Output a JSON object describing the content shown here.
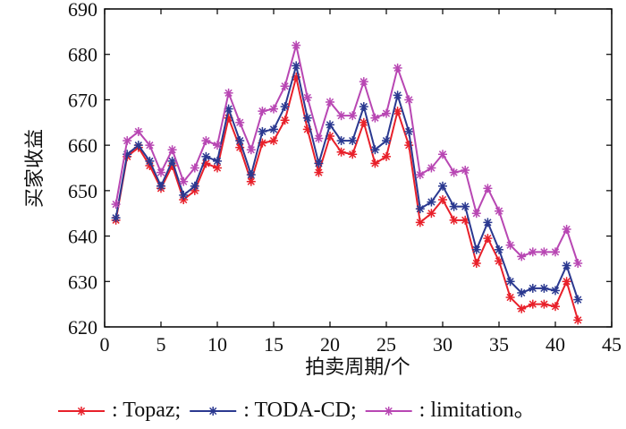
{
  "chart_data": {
    "type": "line",
    "title": "",
    "xlabel": "拍卖周期/个",
    "ylabel": "买家收益",
    "xlim": [
      0,
      45
    ],
    "ylim": [
      620,
      690
    ],
    "xticks": [
      0,
      5,
      10,
      15,
      20,
      25,
      30,
      35,
      40,
      45
    ],
    "yticks": [
      620,
      630,
      640,
      650,
      660,
      670,
      680,
      690
    ],
    "grid": false,
    "legend_position": "bottom",
    "legend_prefix": ": ",
    "legend_suffixes": [
      ";",
      ";",
      "。"
    ],
    "x": [
      1,
      2,
      3,
      4,
      5,
      6,
      7,
      8,
      9,
      10,
      11,
      12,
      13,
      14,
      15,
      16,
      17,
      18,
      19,
      20,
      21,
      22,
      23,
      24,
      25,
      26,
      27,
      28,
      29,
      30,
      31,
      32,
      33,
      34,
      35,
      36,
      37,
      38,
      39,
      40,
      41,
      42
    ],
    "series": [
      {
        "name": "Topaz",
        "color": "#e8202a",
        "marker": "asterisk",
        "values": [
          643.5,
          657.5,
          659.5,
          655.5,
          650.5,
          655.5,
          648,
          650,
          656,
          655,
          666,
          659.5,
          652,
          660.5,
          661,
          665.5,
          675,
          663.5,
          654,
          662,
          658.5,
          658,
          665,
          656,
          657.5,
          667.5,
          660,
          643,
          645,
          648,
          643.5,
          643.5,
          634,
          639.5,
          634.5,
          626.5,
          624,
          625,
          625,
          624.5,
          630,
          621.5
        ]
      },
      {
        "name": "TODA-CD",
        "color": "#2b3990",
        "marker": "asterisk",
        "values": [
          644,
          658,
          660,
          656.5,
          651,
          656.5,
          649,
          651,
          657.5,
          656.5,
          668,
          661,
          653.5,
          663,
          663.5,
          668.5,
          677.5,
          666,
          656,
          664.5,
          661,
          661,
          668.5,
          659,
          661,
          671,
          663,
          646,
          647.5,
          651,
          646.5,
          646.5,
          637,
          643,
          637,
          630,
          627.5,
          628.5,
          628.5,
          628,
          633.5,
          626
        ]
      },
      {
        "name": "limitation",
        "color": "#b847b3",
        "marker": "asterisk",
        "values": [
          647,
          661,
          663,
          660,
          654,
          659,
          652,
          655,
          661,
          660,
          671.5,
          665,
          659,
          667.5,
          668,
          673,
          682,
          670.5,
          661.5,
          669.5,
          666.5,
          666.5,
          674,
          666,
          667,
          677,
          670,
          653.5,
          655,
          658,
          654,
          654.5,
          645,
          650.5,
          645.5,
          638,
          635.5,
          636.5,
          636.5,
          636.5,
          641.5,
          634
        ]
      }
    ]
  }
}
